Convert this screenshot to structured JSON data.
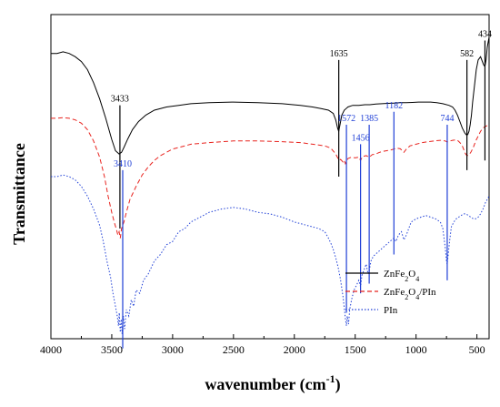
{
  "chart_data": {
    "type": "line",
    "xlabel": "wavenumber (cm",
    "xlabel_sup": "-1",
    "xlabel_close": ")",
    "ylabel": "Transmittance",
    "xlim": [
      4000,
      400
    ],
    "x_reversed": true,
    "x_ticks": [
      "4000",
      "3500",
      "3000",
      "2500",
      "2000",
      "1500",
      "1000",
      "500"
    ],
    "x_tick_values": [
      4000,
      3500,
      3000,
      2500,
      2000,
      1500,
      1000,
      500
    ],
    "colors": {
      "ZnFe2O4": "#000000",
      "ZnFe2O4/PIn": "#e8231e",
      "PIn": "#1f3fd6"
    },
    "series": [
      {
        "name": "ZnFe₂O₄",
        "key": "ZnFe2O4",
        "line_style": "solid",
        "x": [
          4000,
          3950,
          3900,
          3850,
          3800,
          3750,
          3700,
          3650,
          3600,
          3550,
          3500,
          3470,
          3440,
          3420,
          3400,
          3370,
          3330,
          3280,
          3220,
          3150,
          3050,
          2950,
          2850,
          2700,
          2500,
          2300,
          2100,
          1950,
          1850,
          1780,
          1720,
          1680,
          1660,
          1645,
          1635,
          1625,
          1610,
          1590,
          1560,
          1520,
          1470,
          1420,
          1380,
          1330,
          1280,
          1230,
          1180,
          1130,
          1080,
          1030,
          980,
          930,
          880,
          830,
          780,
          730,
          700,
          680,
          660,
          640,
          620,
          600,
          590,
          582,
          575,
          565,
          555,
          545,
          535,
          520,
          505,
          490,
          470,
          455,
          445,
          434,
          425,
          415,
          400
        ],
        "y": [
          0.88,
          0.88,
          0.885,
          0.88,
          0.87,
          0.855,
          0.83,
          0.79,
          0.74,
          0.68,
          0.615,
          0.58,
          0.57,
          0.575,
          0.59,
          0.615,
          0.645,
          0.67,
          0.69,
          0.705,
          0.715,
          0.72,
          0.725,
          0.728,
          0.73,
          0.728,
          0.725,
          0.72,
          0.715,
          0.71,
          0.705,
          0.695,
          0.675,
          0.65,
          0.64,
          0.66,
          0.69,
          0.705,
          0.715,
          0.72,
          0.72,
          0.722,
          0.722,
          0.724,
          0.725,
          0.726,
          0.727,
          0.728,
          0.728,
          0.729,
          0.73,
          0.73,
          0.73,
          0.728,
          0.725,
          0.72,
          0.715,
          0.705,
          0.69,
          0.67,
          0.65,
          0.635,
          0.63,
          0.628,
          0.63,
          0.64,
          0.66,
          0.69,
          0.73,
          0.78,
          0.83,
          0.86,
          0.87,
          0.855,
          0.845,
          0.84,
          0.86,
          0.9,
          0.93
        ]
      },
      {
        "name": "ZnFe₂O₄/PIn",
        "key": "ZnFe2O4/PIn",
        "line_style": "dashed",
        "x": [
          4000,
          3950,
          3900,
          3850,
          3800,
          3750,
          3700,
          3650,
          3600,
          3560,
          3530,
          3500,
          3480,
          3460,
          3450,
          3440,
          3430,
          3420,
          3400,
          3380,
          3350,
          3300,
          3250,
          3200,
          3150,
          3100,
          3050,
          3000,
          2950,
          2900,
          2850,
          2700,
          2500,
          2300,
          2100,
          1950,
          1850,
          1750,
          1700,
          1660,
          1640,
          1630,
          1620,
          1600,
          1590,
          1580,
          1572,
          1560,
          1530,
          1500,
          1470,
          1456,
          1440,
          1410,
          1385,
          1360,
          1330,
          1300,
          1270,
          1240,
          1210,
          1182,
          1160,
          1130,
          1100,
          1080,
          1050,
          1000,
          950,
          900,
          850,
          800,
          760,
          744,
          720,
          700,
          680,
          660,
          640,
          620,
          610,
          600,
          590,
          580,
          565,
          550,
          530,
          510,
          490,
          470,
          450,
          430,
          400
        ],
        "y": [
          0.68,
          0.68,
          0.682,
          0.68,
          0.675,
          0.665,
          0.645,
          0.61,
          0.56,
          0.5,
          0.44,
          0.39,
          0.36,
          0.335,
          0.32,
          0.33,
          0.31,
          0.34,
          0.36,
          0.39,
          0.43,
          0.47,
          0.505,
          0.53,
          0.55,
          0.565,
          0.575,
          0.585,
          0.59,
          0.595,
          0.6,
          0.605,
          0.61,
          0.61,
          0.608,
          0.605,
          0.6,
          0.595,
          0.588,
          0.57,
          0.555,
          0.55,
          0.553,
          0.545,
          0.55,
          0.54,
          0.545,
          0.556,
          0.56,
          0.558,
          0.56,
          0.55,
          0.562,
          0.565,
          0.56,
          0.568,
          0.57,
          0.575,
          0.578,
          0.58,
          0.582,
          0.585,
          0.588,
          0.586,
          0.575,
          0.585,
          0.595,
          0.6,
          0.605,
          0.608,
          0.61,
          0.612,
          0.61,
          0.607,
          0.61,
          0.612,
          0.613,
          0.612,
          0.605,
          0.595,
          0.585,
          0.575,
          0.568,
          0.565,
          0.567,
          0.575,
          0.59,
          0.61,
          0.625,
          0.64,
          0.65,
          0.655,
          0.66
        ]
      },
      {
        "name": "PIn",
        "key": "PIn",
        "line_style": "dotted",
        "x": [
          4000,
          3950,
          3900,
          3850,
          3800,
          3750,
          3700,
          3650,
          3600,
          3570,
          3540,
          3510,
          3490,
          3470,
          3455,
          3445,
          3438,
          3430,
          3422,
          3415,
          3405,
          3395,
          3380,
          3360,
          3340,
          3320,
          3300,
          3270,
          3240,
          3200,
          3150,
          3100,
          3050,
          3000,
          2950,
          2900,
          2850,
          2800,
          2700,
          2600,
          2500,
          2400,
          2300,
          2200,
          2100,
          2000,
          1900,
          1800,
          1750,
          1720,
          1700,
          1680,
          1660,
          1640,
          1620,
          1600,
          1590,
          1580,
          1572,
          1565,
          1555,
          1545,
          1530,
          1510,
          1490,
          1470,
          1456,
          1445,
          1430,
          1410,
          1395,
          1385,
          1370,
          1350,
          1320,
          1290,
          1260,
          1230,
          1200,
          1182,
          1165,
          1145,
          1120,
          1100,
          1080,
          1060,
          1040,
          1000,
          960,
          920,
          880,
          840,
          800,
          780,
          760,
          750,
          744,
          738,
          725,
          710,
          690,
          670,
          650,
          630,
          610,
          590,
          570,
          550,
          530,
          510,
          490,
          470,
          450,
          430,
          400
        ],
        "y": [
          0.5,
          0.5,
          0.505,
          0.5,
          0.49,
          0.47,
          0.44,
          0.4,
          0.35,
          0.3,
          0.24,
          0.19,
          0.14,
          0.1,
          0.07,
          0.04,
          0.08,
          0.02,
          0.06,
          0.015,
          0.07,
          0.03,
          0.09,
          0.07,
          0.12,
          0.1,
          0.15,
          0.14,
          0.18,
          0.2,
          0.24,
          0.26,
          0.29,
          0.3,
          0.33,
          0.34,
          0.36,
          0.37,
          0.39,
          0.4,
          0.405,
          0.4,
          0.39,
          0.385,
          0.375,
          0.36,
          0.35,
          0.34,
          0.33,
          0.31,
          0.295,
          0.275,
          0.25,
          0.22,
          0.18,
          0.13,
          0.095,
          0.06,
          0.04,
          0.07,
          0.045,
          0.09,
          0.12,
          0.15,
          0.165,
          0.18,
          0.16,
          0.195,
          0.21,
          0.23,
          0.2,
          0.21,
          0.24,
          0.255,
          0.265,
          0.275,
          0.285,
          0.295,
          0.305,
          0.31,
          0.3,
          0.32,
          0.33,
          0.305,
          0.32,
          0.34,
          0.36,
          0.37,
          0.375,
          0.38,
          0.375,
          0.37,
          0.36,
          0.34,
          0.28,
          0.24,
          0.23,
          0.25,
          0.3,
          0.345,
          0.36,
          0.37,
          0.375,
          0.38,
          0.385,
          0.385,
          0.38,
          0.375,
          0.37,
          0.37,
          0.375,
          0.385,
          0.4,
          0.42,
          0.44
        ]
      }
    ],
    "peak_markers": [
      {
        "label": "3433",
        "x": 3433,
        "color": "black",
        "y_top": 0.72,
        "y_bottom": 0.34
      },
      {
        "label": "1635",
        "x": 1635,
        "color": "black",
        "y_top": 0.86,
        "y_bottom": 0.5
      },
      {
        "label": "582",
        "x": 582,
        "color": "black",
        "y_top": 0.86,
        "y_bottom": 0.52
      },
      {
        "label": "434",
        "x": 434,
        "color": "black",
        "y_top": 0.92,
        "y_bottom": 0.55
      },
      {
        "label": "3410",
        "x": 3410,
        "color": "blue",
        "y_top": 0.52,
        "y_bottom": -0.03
      },
      {
        "label": "1572",
        "x": 1572,
        "color": "blue",
        "y_top": 0.66,
        "y_bottom": 0.08
      },
      {
        "label": "1456",
        "x": 1456,
        "color": "blue",
        "y_top": 0.6,
        "y_bottom": 0.14
      },
      {
        "label": "1385",
        "x": 1385,
        "color": "blue",
        "y_top": 0.66,
        "y_bottom": 0.17
      },
      {
        "label": "1182",
        "x": 1182,
        "color": "blue",
        "y_top": 0.7,
        "y_bottom": 0.26
      },
      {
        "label": "744",
        "x": 744,
        "color": "blue",
        "y_top": 0.66,
        "y_bottom": 0.18
      }
    ],
    "legend": {
      "placement": "bottom-right",
      "entries": [
        {
          "base": "ZnFe",
          "sub1": "2",
          "mid": "O",
          "sub2": "4",
          "tail": ""
        },
        {
          "base": "ZnFe",
          "sub1": "2",
          "mid": "O",
          "sub2": "4",
          "tail": "/PIn"
        },
        {
          "base": "PIn",
          "sub1": "",
          "mid": "",
          "sub2": "",
          "tail": ""
        }
      ]
    },
    "grid": false
  }
}
